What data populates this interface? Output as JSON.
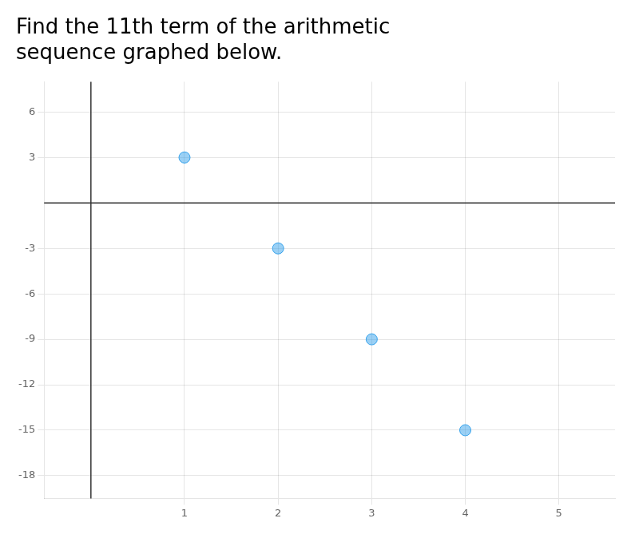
{
  "chart_data": {
    "type": "scatter",
    "title": [
      "Find the 11th term of the arithmetic",
      "sequence graphed below."
    ],
    "x": [
      1,
      2,
      3,
      4
    ],
    "values": [
      3,
      -3,
      -9,
      -15
    ],
    "xlim": [
      -0.5,
      5.6
    ],
    "xticks": [
      1,
      2,
      3,
      4,
      5
    ],
    "ylim": [
      -19.5,
      8.0
    ],
    "yticks": [
      6,
      3,
      -3,
      -6,
      -9,
      -12,
      -15,
      -18
    ],
    "grid": true
  }
}
